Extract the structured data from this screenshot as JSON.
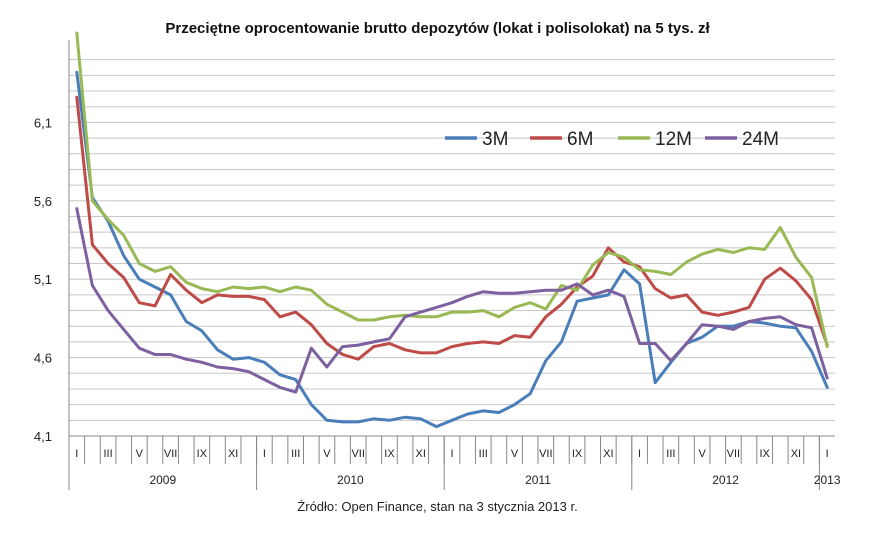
{
  "title": "Przeciętne oprocentowanie brutto depozytów (lokat i polisolokat) na 5 tys. zł",
  "source": "Źródło: Open Finance, stan na 3 stycznia 2013 r.",
  "chart_data": {
    "type": "line",
    "title": "Przeciętne oprocentowanie brutto depozytów (lokat i polisolokat) na 5 tys. zł",
    "ylim": [
      4.1,
      6.6
    ],
    "yticks": [
      "4,1",
      "4,6",
      "5,1",
      "5,6",
      "6,1"
    ],
    "ytick_values": [
      4.1,
      4.6,
      5.1,
      5.6,
      6.1
    ],
    "grid": true,
    "legend": "top-right",
    "month_labels": [
      "I",
      "",
      "III",
      "",
      "V",
      "",
      "VII",
      "",
      "IX",
      "",
      "XI",
      "",
      "I",
      "",
      "III",
      "",
      "V",
      "",
      "VII",
      "",
      "IX",
      "",
      "XI",
      "",
      "I",
      "",
      "III",
      "",
      "V",
      "",
      "VII",
      "",
      "IX",
      "",
      "XI",
      "",
      "I",
      "",
      "III",
      "",
      "V",
      "",
      "VII",
      "",
      "IX",
      "",
      "XI",
      "",
      "I"
    ],
    "years": [
      "2009",
      "2010",
      "2011",
      "2012",
      "2013"
    ],
    "series": [
      {
        "name": "3M",
        "color": "#4a7ebb",
        "values": [
          6.42,
          5.62,
          5.47,
          5.25,
          5.1,
          5.05,
          5.0,
          4.83,
          4.77,
          4.65,
          4.59,
          4.6,
          4.57,
          4.49,
          4.46,
          4.3,
          4.2,
          4.19,
          4.19,
          4.21,
          4.2,
          4.22,
          4.21,
          4.16,
          4.2,
          4.24,
          4.26,
          4.25,
          4.3,
          4.37,
          4.58,
          4.7,
          4.96,
          4.98,
          5.0,
          5.16,
          5.07,
          4.44,
          4.57,
          4.69,
          4.73,
          4.8,
          4.8,
          4.83,
          4.82,
          4.8,
          4.79,
          4.64,
          4.41
        ]
      },
      {
        "name": "6M",
        "color": "#be4b48",
        "values": [
          6.26,
          5.32,
          5.2,
          5.11,
          4.95,
          4.93,
          5.13,
          5.03,
          4.95,
          5.0,
          4.99,
          4.99,
          4.97,
          4.86,
          4.89,
          4.81,
          4.69,
          4.62,
          4.59,
          4.67,
          4.69,
          4.65,
          4.63,
          4.63,
          4.67,
          4.69,
          4.7,
          4.69,
          4.74,
          4.73,
          4.86,
          4.94,
          5.05,
          5.12,
          5.3,
          5.21,
          5.18,
          5.04,
          4.98,
          5.0,
          4.89,
          4.87,
          4.89,
          4.92,
          5.1,
          5.17,
          5.09,
          4.97,
          4.68
        ]
      },
      {
        "name": "12M",
        "color": "#98b954",
        "values": [
          6.67,
          5.6,
          5.48,
          5.38,
          5.2,
          5.15,
          5.18,
          5.08,
          5.04,
          5.02,
          5.05,
          5.04,
          5.05,
          5.02,
          5.05,
          5.03,
          4.94,
          4.89,
          4.84,
          4.84,
          4.86,
          4.87,
          4.86,
          4.86,
          4.89,
          4.89,
          4.9,
          4.86,
          4.92,
          4.95,
          4.91,
          5.06,
          5.03,
          5.19,
          5.27,
          5.24,
          5.16,
          5.15,
          5.13,
          5.21,
          5.26,
          5.29,
          5.27,
          5.3,
          5.29,
          5.43,
          5.24,
          5.11,
          4.67
        ]
      },
      {
        "name": "24M",
        "color": "#7d60a0",
        "values": [
          5.55,
          5.06,
          4.9,
          4.78,
          4.66,
          4.62,
          4.62,
          4.59,
          4.57,
          4.54,
          4.53,
          4.51,
          4.46,
          4.41,
          4.38,
          4.66,
          4.54,
          4.67,
          4.68,
          4.7,
          4.72,
          4.86,
          4.89,
          4.92,
          4.95,
          4.99,
          5.02,
          5.01,
          5.01,
          5.02,
          5.03,
          5.03,
          5.07,
          5.0,
          5.03,
          4.99,
          4.69,
          4.69,
          4.58,
          4.69,
          4.81,
          4.8,
          4.78,
          4.83,
          4.85,
          4.86,
          4.81,
          4.79,
          4.47
        ]
      }
    ]
  }
}
